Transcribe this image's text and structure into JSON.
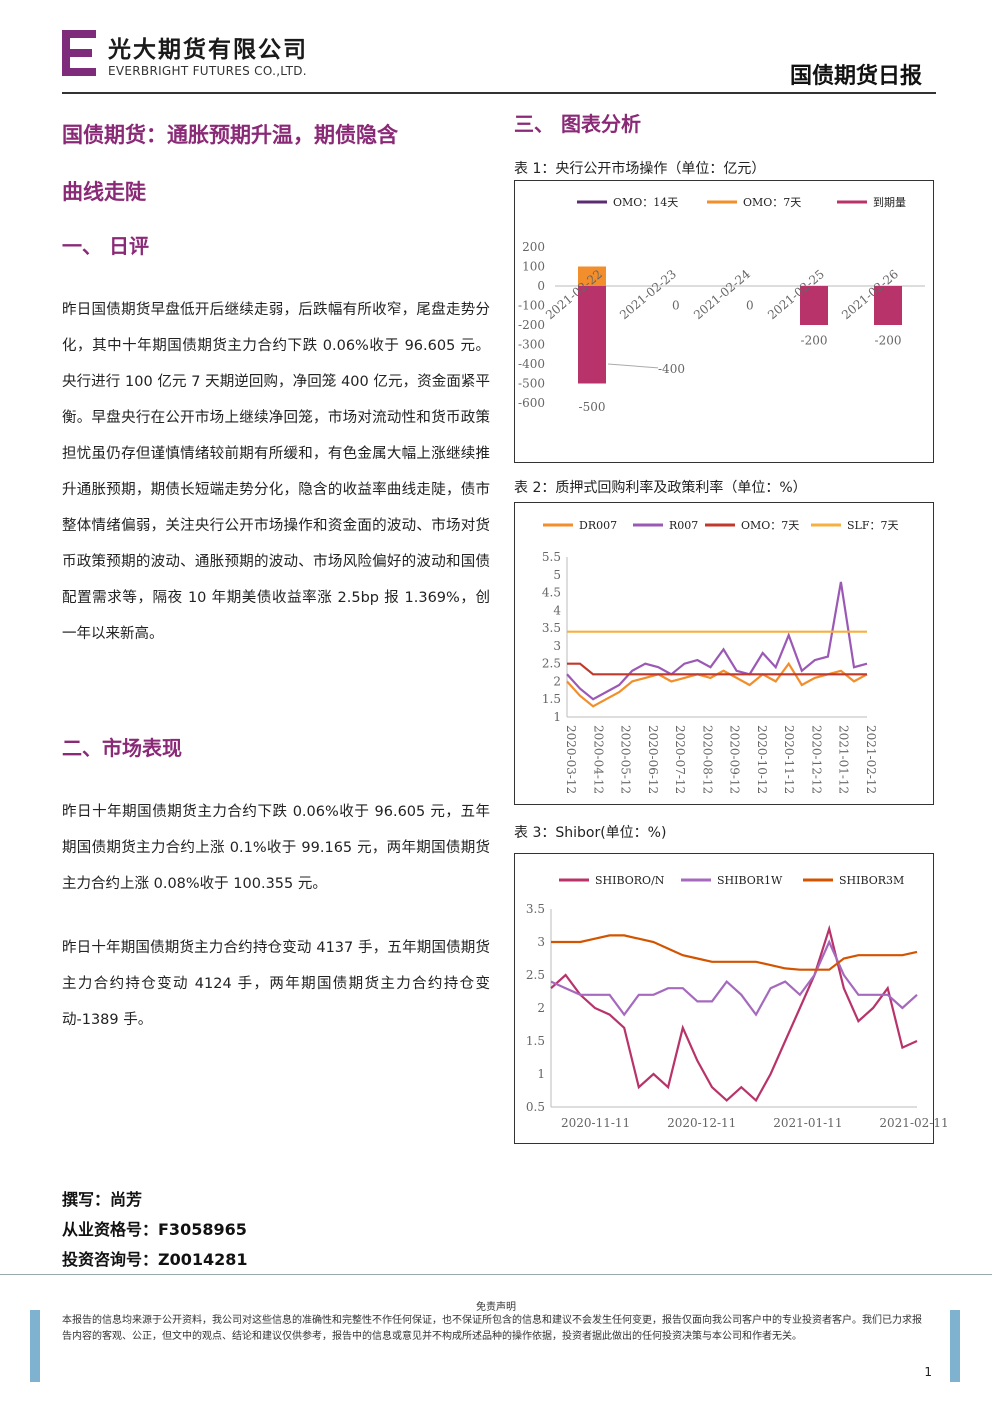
{
  "header": {
    "company_cn": "光大期货有限公司",
    "company_en": "EVERBRIGHT FUTURES CO.,LTD.",
    "report_title": "国债期货日报"
  },
  "left": {
    "main_title_line1": "国债期货：通胀预期升温，期债隐含",
    "main_title_line2": "曲线走陡",
    "sec1_title": "一、  日评",
    "sec1_text": "昨日国债期货早盘低开后继续走弱，后跌幅有所收窄，尾盘走势分化，其中十年期国债期货主力合约下跌 0.06%收于 96.605 元。央行进行 100 亿元 7 天期逆回购，净回笼 400 亿元，资金面紧平衡。早盘央行在公开市场上继续净回笼，市场对流动性和货币政策担忧虽仍存但谨慎情绪较前期有所缓和，有色金属大幅上涨继续推升通胀预期，期债长短端走势分化，隐含的收益率曲线走陡，债市整体情绪偏弱，关注央行公开市场操作和资金面的波动、市场对货币政策预期的波动、通胀预期的波动、市场风险偏好的波动和国债配置需求等，隔夜 10 年期美债收益率涨 2.5bp 报 1.369%，创一年以来新高。",
    "sec2_title": "二、市场表现",
    "sec2_text1": "昨日十年期国债期货主力合约下跌 0.06%收于 96.605 元，五年期国债期货主力合约上涨 0.1%收于 99.165 元，两年期国债期货主力合约上涨 0.08%收于 100.355 元。",
    "sec2_text2": "昨日十年期国债期货主力合约持仓变动 4137 手，五年期国债期货主力合约持仓变动 4124 手，两年期国债期货主力合约持仓变动-1389 手。",
    "author1": "撰写：尚芳",
    "author2": "从业资格号：F3058965",
    "author3": "投资咨询号：Z0014281"
  },
  "right": {
    "sec3_title": "三、  图表分析",
    "chart1_caption": "表 1：央行公开市场操作（单位：亿元）",
    "chart2_caption": "表 2：质押式回购利率及政策利率（单位：%）",
    "chart3_caption": "表 3：Shibor(单位：%)"
  },
  "chart_data": [
    {
      "type": "bar",
      "title": "表 1：央行公开市场操作（单位：亿元）",
      "categories": [
        "2021-02-22",
        "2021-02-23",
        "2021-02-24",
        "2021-02-25",
        "2021-02-26"
      ],
      "series": [
        {
          "name": "OMO：14天",
          "values": [
            0,
            0,
            0,
            0,
            0
          ],
          "color": "#5b2c6f"
        },
        {
          "name": "OMO：7天",
          "values": [
            100,
            0,
            0,
            0,
            0
          ],
          "color": "#f28e2b"
        },
        {
          "name": "到期量",
          "values": [
            -500,
            0,
            0,
            -200,
            -200
          ],
          "color": "#b8336a"
        }
      ],
      "data_labels": [
        "-500",
        "-400",
        "0",
        "0",
        "-200",
        "-200"
      ],
      "y_ticks": [
        "200",
        "100",
        "0",
        "-100",
        "-200",
        "-300",
        "-400",
        "-500",
        "-600"
      ],
      "ylim": [
        -600,
        200
      ]
    },
    {
      "type": "line",
      "title": "表 2：质押式回购利率及政策利率（单位：%）",
      "x_ticks": [
        "2020-03-12",
        "2020-04-12",
        "2020-05-12",
        "2020-06-12",
        "2020-07-12",
        "2020-08-12",
        "2020-09-12",
        "2020-10-12",
        "2020-11-12",
        "2020-12-12",
        "2021-01-12",
        "2021-02-12"
      ],
      "y_ticks": [
        "5.5",
        "5",
        "4.5",
        "4",
        "3.5",
        "3",
        "2.5",
        "2",
        "1.5",
        "1"
      ],
      "ylim": [
        1,
        5.5
      ],
      "series": [
        {
          "name": "DR007",
          "color": "#f28e2b",
          "values": [
            2.0,
            1.6,
            1.3,
            1.5,
            1.7,
            2.0,
            2.1,
            2.2,
            2.0,
            2.1,
            2.2,
            2.1,
            2.3,
            2.1,
            1.9,
            2.2,
            2.0,
            2.5,
            1.9,
            2.1,
            2.2,
            2.3,
            2.0,
            2.2
          ]
        },
        {
          "name": "R007",
          "color": "#9b59b6",
          "values": [
            2.2,
            1.8,
            1.5,
            1.7,
            1.9,
            2.3,
            2.5,
            2.4,
            2.2,
            2.5,
            2.6,
            2.4,
            2.9,
            2.3,
            2.2,
            2.8,
            2.4,
            3.3,
            2.3,
            2.6,
            2.7,
            4.8,
            2.4,
            2.5
          ]
        },
        {
          "name": "OMO：7天",
          "color": "#c0392b",
          "values": [
            2.5,
            2.5,
            2.2,
            2.2,
            2.2,
            2.2,
            2.2,
            2.2,
            2.2,
            2.2,
            2.2,
            2.2,
            2.2,
            2.2,
            2.2,
            2.2,
            2.2,
            2.2,
            2.2,
            2.2,
            2.2,
            2.2,
            2.2,
            2.2
          ]
        },
        {
          "name": "SLF：7天",
          "color": "#f5b041",
          "values": [
            3.4,
            3.4,
            3.4,
            3.4,
            3.4,
            3.4,
            3.4,
            3.4,
            3.4,
            3.4,
            3.4,
            3.4,
            3.4,
            3.4,
            3.4,
            3.4,
            3.4,
            3.4,
            3.4,
            3.4,
            3.4,
            3.4,
            3.4,
            3.4
          ]
        }
      ]
    },
    {
      "type": "line",
      "title": "表 3：Shibor(单位：%)",
      "x_ticks": [
        "2020-11-11",
        "2020-12-11",
        "2021-01-11",
        "2021-02-11"
      ],
      "y_ticks": [
        "3.5",
        "3",
        "2.5",
        "2",
        "1.5",
        "1",
        "0.5"
      ],
      "ylim": [
        0.5,
        3.5
      ],
      "series": [
        {
          "name": "SHIBORO/N",
          "color": "#b8336a",
          "values": [
            2.3,
            2.5,
            2.2,
            2.0,
            1.9,
            1.7,
            0.8,
            1.0,
            0.8,
            1.7,
            1.2,
            0.8,
            0.6,
            0.8,
            0.6,
            1.0,
            1.5,
            2.0,
            2.5,
            3.2,
            2.3,
            1.8,
            2.0,
            2.3,
            1.4,
            1.5
          ]
        },
        {
          "name": "SHIBOR1W",
          "color": "#a569bd",
          "values": [
            2.4,
            2.3,
            2.2,
            2.2,
            2.2,
            1.9,
            2.2,
            2.2,
            2.3,
            2.3,
            2.1,
            2.1,
            2.4,
            2.2,
            1.9,
            2.3,
            2.4,
            2.2,
            2.5,
            3.0,
            2.5,
            2.2,
            2.2,
            2.2,
            2.0,
            2.2
          ]
        },
        {
          "name": "SHIBOR3M",
          "color": "#d35400",
          "values": [
            3.0,
            3.0,
            3.0,
            3.05,
            3.1,
            3.1,
            3.05,
            3.0,
            2.9,
            2.8,
            2.75,
            2.7,
            2.7,
            2.7,
            2.7,
            2.65,
            2.6,
            2.58,
            2.58,
            2.58,
            2.75,
            2.8,
            2.8,
            2.8,
            2.8,
            2.85
          ]
        }
      ]
    }
  ],
  "footer": {
    "disclaimer_title": "免责声明",
    "disclaimer_text": "本报告的信息均来源于公开资料，我公司对这些信息的准确性和完整性不作任何保证，也不保证所包含的信息和建议不会发生任何变更，报告仅面向我公司客户中的专业投资者客户。我们已力求报告内容的客观、公正，但文中的观点、结论和建议仅供参考，报告中的信息或意见并不构成所述品种的操作依据，投资者据此做出的任何投资决策与本公司和作者无关。",
    "page_number": "1"
  }
}
